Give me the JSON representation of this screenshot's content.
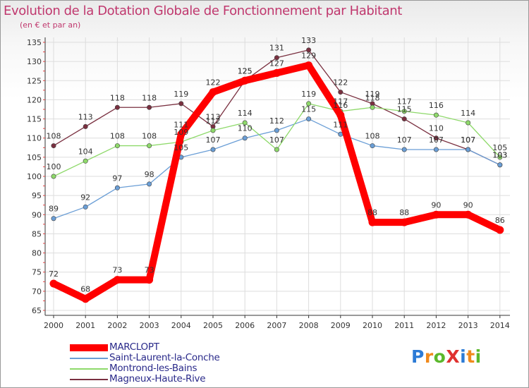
{
  "title": "Evolution de la Dotation Globale de Fonctionnement par Habitant",
  "subtitle": "(en € et par an)",
  "brand": {
    "text": "ProXiti",
    "letters": [
      {
        "ch": "P",
        "color": "#2c7bd6"
      },
      {
        "ch": "r",
        "color": "#f08a1c"
      },
      {
        "ch": "o",
        "color": "#5bb82d"
      },
      {
        "ch": "X",
        "color": "#e0312f"
      },
      {
        "ch": "i",
        "color": "#2c7bd6"
      },
      {
        "ch": "t",
        "color": "#f08a1c"
      },
      {
        "ch": "i",
        "color": "#5bb82d"
      }
    ]
  },
  "chart_data": {
    "type": "line",
    "title": "Evolution de la Dotation Globale de Fonctionnement par Habitant",
    "subtitle": "(en € et par an)",
    "xlabel": "",
    "ylabel": "",
    "x": [
      "2000",
      "2001",
      "2002",
      "2003",
      "2004",
      "2005",
      "2006",
      "2007",
      "2008",
      "2009",
      "2010",
      "2011",
      "2012",
      "2013",
      "2014"
    ],
    "ylim": [
      65,
      135
    ],
    "yticks": [
      65,
      70,
      75,
      80,
      85,
      90,
      95,
      100,
      105,
      110,
      115,
      120,
      125,
      130,
      135
    ],
    "grid": true,
    "legend_position": "bottom-left",
    "series": [
      {
        "name": "MARCLOPT",
        "color": "#ff0000",
        "thick": true,
        "values": [
          72,
          68,
          73,
          73,
          111,
          122,
          125,
          127,
          129,
          116,
          88,
          88,
          90,
          90,
          86
        ]
      },
      {
        "name": "Saint-Laurent-la-Conche",
        "color": "#6a9ed6",
        "thick": false,
        "values": [
          89,
          92,
          97,
          98,
          105,
          107,
          110,
          112,
          115,
          111,
          108,
          107,
          107,
          107,
          103
        ]
      },
      {
        "name": "Montrond-les-Bains",
        "color": "#8ed96a",
        "thick": false,
        "values": [
          100,
          104,
          108,
          108,
          109,
          112,
          114,
          107,
          119,
          117,
          118,
          117,
          116,
          114,
          105
        ]
      },
      {
        "name": "Magneux-Haute-Rive",
        "color": "#7a3040",
        "thick": false,
        "values": [
          108,
          113,
          118,
          118,
          119,
          113,
          125,
          131,
          133,
          122,
          119,
          115,
          110,
          107,
          103
        ]
      }
    ]
  }
}
